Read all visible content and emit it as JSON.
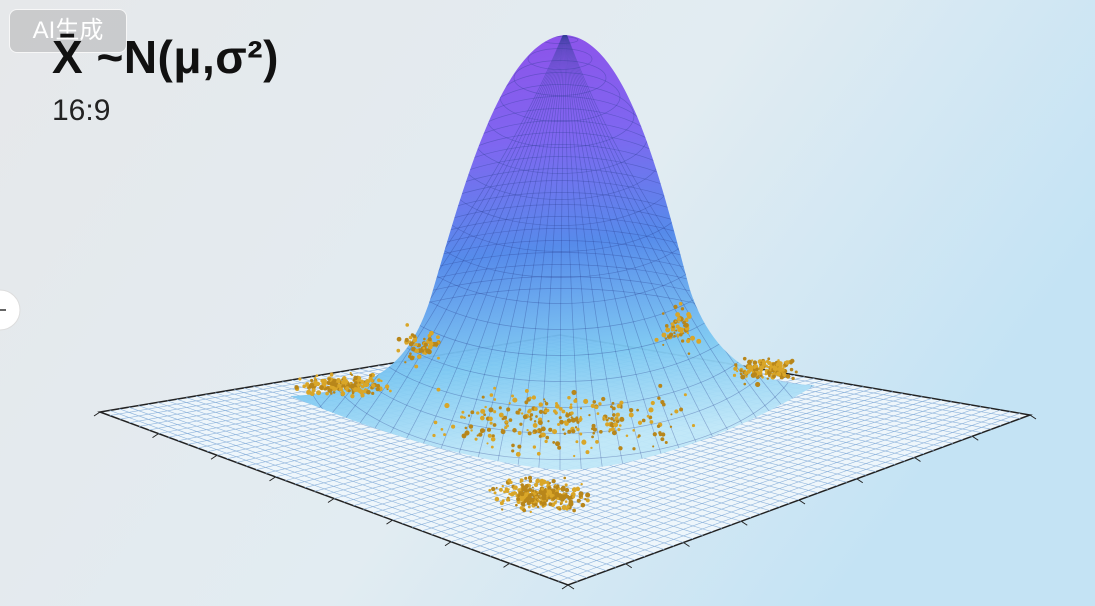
{
  "badge": "AI生成",
  "title": "X̄ ~N(μ,σ²)",
  "subtitle": "16:9"
}
